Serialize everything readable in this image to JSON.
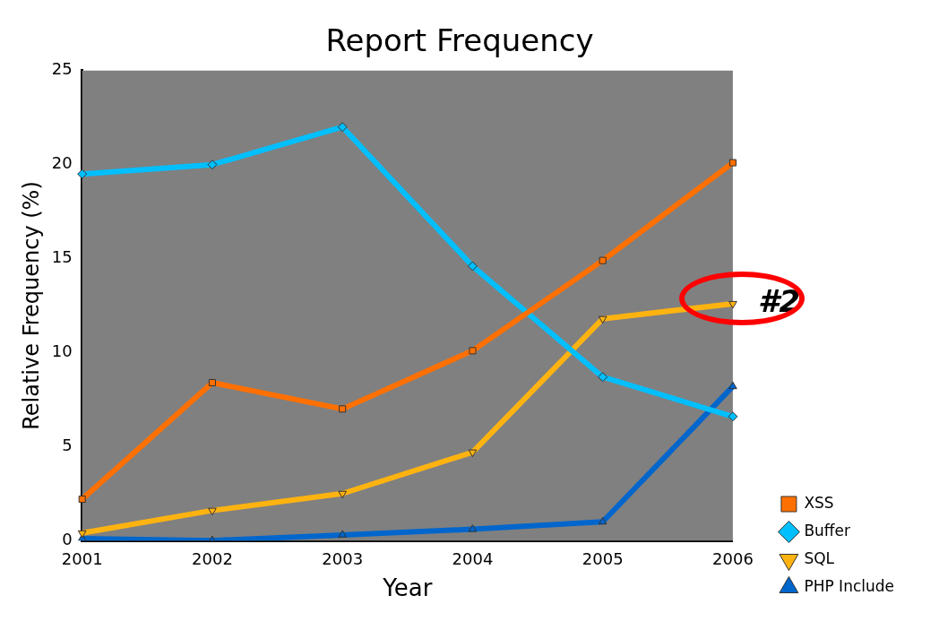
{
  "chart_data": {
    "type": "line",
    "title": "Report Frequency",
    "xlabel": "Year",
    "ylabel": "Relative Frequency (%)",
    "categories": [
      "2001",
      "2002",
      "2003",
      "2004",
      "2005",
      "2006"
    ],
    "series": [
      {
        "name": "XSS",
        "color": "#ff7000",
        "marker": "square",
        "values": [
          2.2,
          8.4,
          7.0,
          10.1,
          14.9,
          20.1
        ]
      },
      {
        "name": "Buffer",
        "color": "#00bfff",
        "marker": "diamond",
        "values": [
          19.5,
          20.0,
          22.0,
          14.6,
          8.7,
          6.6
        ]
      },
      {
        "name": "SQL",
        "color": "#ffb310",
        "marker": "triangle-down",
        "values": [
          0.4,
          1.6,
          2.5,
          4.7,
          11.8,
          12.6
        ]
      },
      {
        "name": "PHP Include",
        "color": "#0066cc",
        "marker": "triangle",
        "values": [
          0.1,
          0.0,
          0.3,
          0.6,
          1.0,
          8.2
        ]
      }
    ],
    "ylim": [
      0,
      25
    ],
    "yticks": [
      0,
      5,
      10,
      15,
      20,
      25
    ],
    "grid": false,
    "legend": "bottom right",
    "annotations": [
      {
        "text": "#2",
        "x": "2006",
        "y": 12.6
      }
    ]
  }
}
